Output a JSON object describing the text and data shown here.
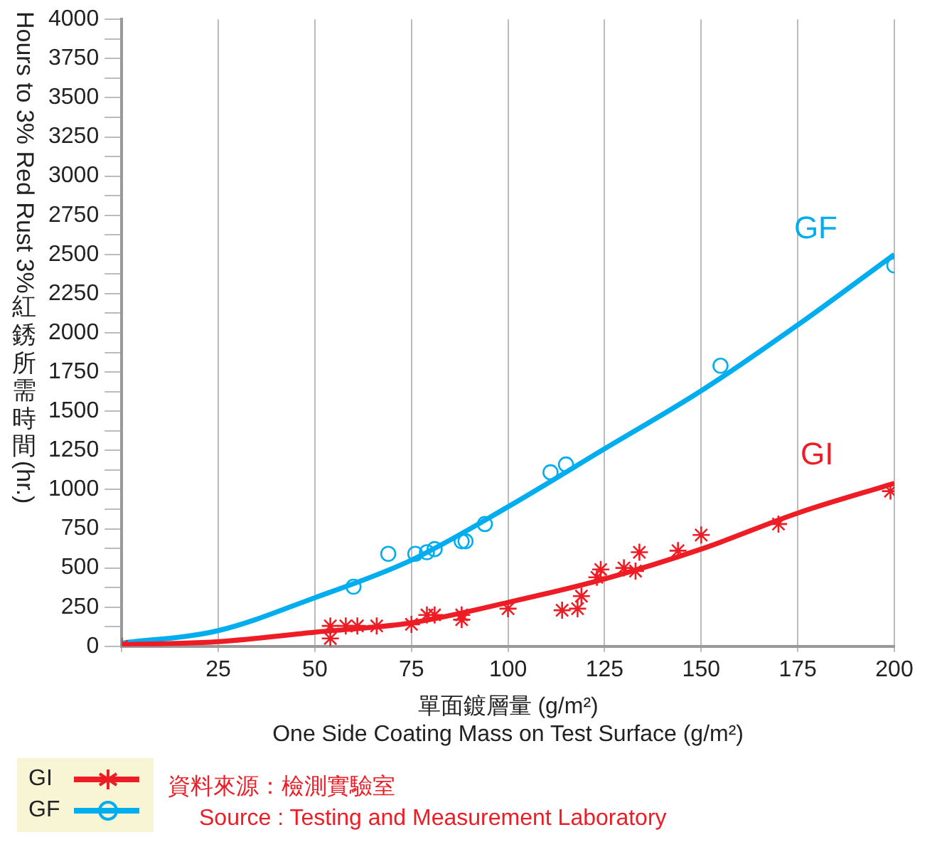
{
  "chart_data": {
    "type": "scatter",
    "xlabel": "單面鍍層量 (g/m²)\nOne Side Coating Mass on Test Surface (g/m²)",
    "ylabel": "Hours to 3% Red Rust  3% 紅銹所需時間 (hr.)",
    "xlim": [
      0,
      200
    ],
    "ylim": [
      0,
      4000
    ],
    "xticks": [
      {
        "value": 0,
        "label": null
      },
      25,
      50,
      75,
      100,
      125,
      150,
      175,
      200
    ],
    "yticks": [
      0,
      {
        "value": 125,
        "label": null
      },
      250,
      {
        "value": 375,
        "label": null
      },
      500,
      {
        "value": 625,
        "label": null
      },
      750,
      {
        "value": 875,
        "label": null
      },
      1000,
      {
        "value": 1125,
        "label": null
      },
      1250,
      {
        "value": 1375,
        "label": null
      },
      1500,
      {
        "value": 1625,
        "label": null
      },
      1750,
      {
        "value": 1875,
        "label": null
      },
      2000,
      {
        "value": 2125,
        "label": null
      },
      2250,
      {
        "value": 2375,
        "label": null
      },
      2500,
      {
        "value": 2625,
        "label": null
      },
      2750,
      {
        "value": 2875,
        "label": null
      },
      3000,
      {
        "value": 3125,
        "label": null
      },
      3250,
      {
        "value": 3375,
        "label": null
      },
      3500,
      {
        "value": 3625,
        "label": null
      },
      3750,
      {
        "value": 3875,
        "label": null
      },
      4000
    ],
    "grid": "x",
    "legend": "bottom left",
    "series": [
      {
        "name": "GI",
        "color": "#ee1c25",
        "type": "scatter",
        "marker": "cross",
        "x": [
          0,
          54,
          54,
          58,
          61,
          66,
          75,
          79,
          81,
          88,
          88,
          100,
          114,
          118,
          119,
          123,
          124,
          130,
          133,
          134,
          144,
          150,
          170,
          199
        ],
        "values": [
          0,
          130,
          50,
          130,
          130,
          130,
          140,
          200,
          200,
          200,
          170,
          240,
          230,
          240,
          320,
          440,
          490,
          500,
          480,
          600,
          610,
          710,
          780,
          990
        ]
      },
      {
        "color": "#ee1c25",
        "type": "line",
        "marker": "none",
        "line_style": "solid",
        "x": [
          0,
          25,
          50,
          75,
          100,
          125,
          150,
          175,
          200
        ],
        "values": [
          10,
          30,
          90,
          150,
          280,
          430,
          620,
          850,
          1040
        ]
      },
      {
        "name": "GF",
        "color": "#00aeef",
        "type": "scatter",
        "marker": "circle",
        "x": [
          60,
          69,
          76,
          79,
          81,
          88,
          89,
          94,
          111,
          115,
          155,
          200
        ],
        "values": [
          380,
          590,
          590,
          600,
          620,
          670,
          670,
          780,
          1110,
          1160,
          1790,
          2430
        ]
      },
      {
        "color": "#00aeef",
        "type": "line",
        "marker": "none",
        "line_style": "solid",
        "x": [
          0,
          25,
          50,
          75,
          100,
          125,
          150,
          175,
          200
        ],
        "values": [
          20,
          100,
          310,
          550,
          890,
          1260,
          1630,
          2050,
          2500
        ]
      }
    ],
    "annotations": [
      "資料來源：檢測實驗室",
      "Source :  Testing and Measurement Laboratory"
    ]
  }
}
